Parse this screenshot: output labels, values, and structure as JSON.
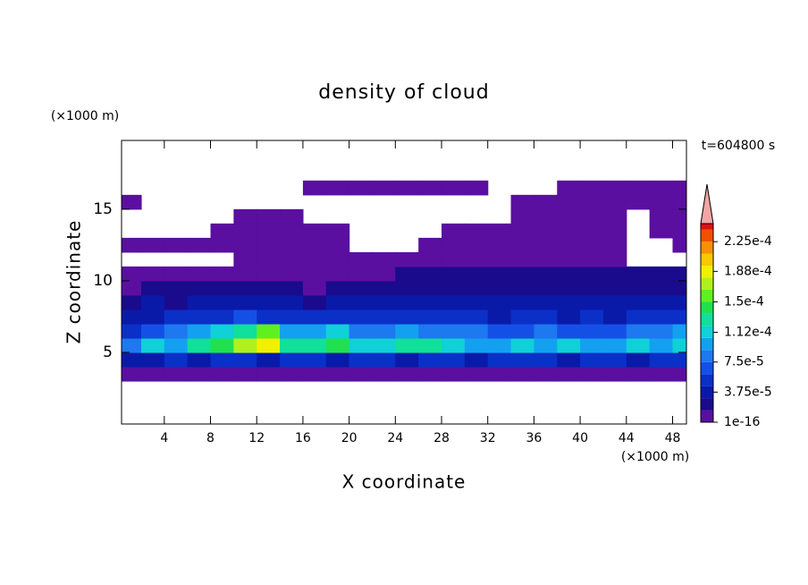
{
  "chart_data": {
    "type": "contour",
    "title": "density of cloud",
    "subtitle": "t=604800 s",
    "xlabel": "X coordinate",
    "ylabel": "Z coordinate",
    "x_unit": "(×1000 m)",
    "y_unit": "(×1000 m)",
    "xlim": [
      0.3,
      49.2
    ],
    "ylim": [
      0,
      19.8
    ],
    "xticks": [
      4,
      8,
      12,
      16,
      20,
      24,
      28,
      32,
      36,
      40,
      44,
      48
    ],
    "yticks": [
      5,
      10,
      15
    ],
    "x": [
      1,
      3,
      5,
      7,
      9,
      11,
      13,
      15,
      17,
      19,
      21,
      23,
      25,
      27,
      29,
      31,
      33,
      35,
      37,
      39,
      41,
      43,
      45,
      47,
      49
    ],
    "y": [
      3.5,
      4.5,
      5.5,
      6.5,
      7.5,
      8.5,
      9.5,
      10.5,
      11.5,
      12.5,
      13.5,
      14.5,
      15.5,
      16.5
    ],
    "z": [
      [
        8e-06,
        8e-06,
        8e-06,
        8e-06,
        8e-06,
        8e-06,
        8e-06,
        8e-06,
        8e-06,
        8e-06,
        8e-06,
        8e-06,
        8e-06,
        8e-06,
        8e-06,
        8e-06,
        8e-06,
        8e-06,
        8e-06,
        8e-06,
        8e-06,
        8e-06,
        8e-06,
        8e-06,
        8e-06
      ],
      [
        3.5e-05,
        4e-05,
        5e-05,
        4e-05,
        4.5e-05,
        5.5e-05,
        4e-05,
        5e-05,
        4.5e-05,
        4e-05,
        5e-05,
        4.5e-05,
        4e-05,
        5e-05,
        4.5e-05,
        4e-05,
        5e-05,
        4.5e-05,
        5e-05,
        4e-05,
        4.5e-05,
        5e-05,
        4e-05,
        5.5e-05,
        5e-05
      ],
      [
        7.5e-05,
        0.00011,
        0.0001,
        0.000125,
        0.00014,
        0.000165,
        0.000185,
        0.00012,
        0.00013,
        0.000135,
        0.000105,
        0.000115,
        0.00012,
        0.000125,
        0.00011,
        0.0001,
        9e-05,
        0.000105,
        9.5e-05,
        0.00011,
        0.0001,
        9e-05,
        0.000105,
        0.0001,
        0.000115
      ],
      [
        5e-05,
        7e-05,
        8e-05,
        9e-05,
        0.000105,
        0.00013,
        0.000155,
        9e-05,
        0.0001,
        0.000105,
        8e-05,
        8.5e-05,
        9e-05,
        8.5e-05,
        8e-05,
        7.5e-05,
        6.5e-05,
        7e-05,
        8e-05,
        7e-05,
        6.5e-05,
        7e-05,
        7.5e-05,
        8e-05,
        9.5e-05
      ],
      [
        3.5e-05,
        4e-05,
        4.5e-05,
        5e-05,
        5.5e-05,
        6e-05,
        5.5e-05,
        5e-05,
        5e-05,
        4.5e-05,
        5e-05,
        4.5e-05,
        5e-05,
        5.5e-05,
        5e-05,
        4.5e-05,
        4e-05,
        4.5e-05,
        5e-05,
        4e-05,
        4.5e-05,
        4e-05,
        4.5e-05,
        5e-05,
        4.5e-05
      ],
      [
        2.5e-05,
        3e-05,
        2.5e-05,
        3e-05,
        3.5e-05,
        3e-05,
        3.5e-05,
        3e-05,
        2.5e-05,
        3e-05,
        3.5e-05,
        3e-05,
        3.5e-05,
        4e-05,
        3.5e-05,
        3e-05,
        3e-05,
        3.5e-05,
        3e-05,
        3e-05,
        3.5e-05,
        3e-05,
        3e-05,
        3.5e-05,
        4e-05
      ],
      [
        1.2e-05,
        1.8e-05,
        1.6e-05,
        2e-05,
        1.6e-05,
        1.8e-05,
        2e-05,
        1.6e-05,
        1.4e-05,
        1.6e-05,
        1.8e-05,
        2e-05,
        1.8e-05,
        2.2e-05,
        2e-05,
        2.2e-05,
        1.8e-05,
        2e-05,
        2.4e-05,
        2.2e-05,
        2e-05,
        2.2e-05,
        2.4e-05,
        2.6e-05,
        2.8e-05
      ],
      [
        8e-06,
        8e-06,
        8e-06,
        8e-06,
        8e-06,
        8e-06,
        8e-06,
        8e-06,
        8e-06,
        8e-06,
        8e-06,
        1.2e-05,
        1.6e-05,
        1.6e-05,
        1.8e-05,
        2e-05,
        1.8e-05,
        2e-05,
        1.6e-05,
        1.8e-05,
        2e-05,
        2e-05,
        2.2e-05,
        2e-05,
        2.4e-05
      ],
      [
        null,
        null,
        null,
        null,
        null,
        5e-06,
        5e-06,
        5e-06,
        5e-06,
        5e-06,
        5e-06,
        5e-06,
        5e-06,
        5e-06,
        5e-06,
        5e-06,
        5e-06,
        5e-06,
        5e-06,
        5e-06,
        5e-06,
        5e-06,
        null,
        null,
        null
      ],
      [
        5e-06,
        5e-06,
        5e-06,
        5e-06,
        5e-06,
        5e-06,
        5e-06,
        5e-06,
        5e-06,
        5e-06,
        null,
        null,
        null,
        5e-06,
        5e-06,
        5e-06,
        5e-06,
        5e-06,
        5e-06,
        5e-06,
        5e-06,
        5e-06,
        null,
        null,
        5e-06
      ],
      [
        null,
        null,
        null,
        null,
        5e-06,
        5e-06,
        5e-06,
        5e-06,
        5e-06,
        5e-06,
        null,
        null,
        null,
        null,
        5e-06,
        5e-06,
        5e-06,
        5e-06,
        5e-06,
        5e-06,
        5e-06,
        5e-06,
        null,
        5e-06,
        5e-06
      ],
      [
        null,
        null,
        null,
        null,
        null,
        5e-06,
        5e-06,
        5e-06,
        null,
        null,
        null,
        null,
        null,
        null,
        null,
        null,
        null,
        5e-06,
        5e-06,
        5e-06,
        5e-06,
        5e-06,
        null,
        5e-06,
        5e-06
      ],
      [
        5e-06,
        null,
        null,
        null,
        null,
        null,
        null,
        null,
        null,
        null,
        null,
        null,
        null,
        null,
        null,
        null,
        null,
        5e-06,
        5e-06,
        5e-06,
        5e-06,
        5e-06,
        5e-06,
        5e-06,
        5e-06
      ],
      [
        null,
        null,
        null,
        null,
        null,
        null,
        null,
        null,
        5e-06,
        5e-06,
        5e-06,
        5e-06,
        5e-06,
        5e-06,
        5e-06,
        5e-06,
        null,
        null,
        null,
        5e-06,
        5e-06,
        5e-06,
        5e-06,
        5e-06,
        5e-06
      ]
    ],
    "levels": [
      1e-16,
      1.5e-05,
      3e-05,
      4.5e-05,
      6e-05,
      7.5e-05,
      9e-05,
      0.000105,
      0.00012,
      0.000135,
      0.00015,
      0.000165,
      0.00018,
      0.000195,
      0.00021,
      0.000225,
      0.00024
    ],
    "colors": [
      "#5a0fa0",
      "#1a0a8c",
      "#0a1aa8",
      "#0a30c8",
      "#1450e6",
      "#1e78f0",
      "#14a0f0",
      "#10d0d8",
      "#10e09a",
      "#20e050",
      "#60f020",
      "#b0f020",
      "#f0f000",
      "#f8c800",
      "#f89000",
      "#f05000",
      "#e01010"
    ],
    "extend_color": "#f4a4a4",
    "clim": [
      1e-16,
      0.0002475
    ],
    "cticks": [
      {
        "value": 1e-16,
        "label": "1e-16"
      },
      {
        "value": 3.75e-05,
        "label": "3.75e-5"
      },
      {
        "value": 7.5e-05,
        "label": "7.5e-5"
      },
      {
        "value": 0.000112,
        "label": "1.12e-4"
      },
      {
        "value": 0.00015,
        "label": "1.5e-4"
      },
      {
        "value": 0.000188,
        "label": "1.88e-4"
      },
      {
        "value": 0.000225,
        "label": "2.25e-4"
      }
    ]
  }
}
